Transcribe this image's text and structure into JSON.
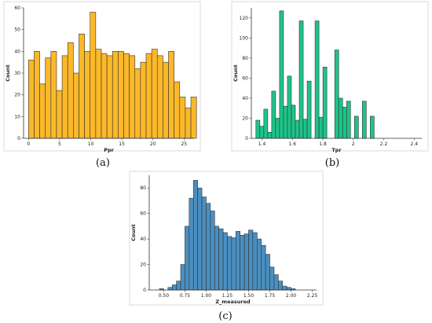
{
  "figure": {
    "captions": [
      "(a)",
      "(b)",
      "(c)"
    ]
  },
  "chart_data": [
    {
      "type": "bar",
      "panel": "a",
      "color": "#fbb829",
      "xlabel": "Ppr",
      "ylabel": "Count",
      "xlim": [
        -0.8,
        26.6
      ],
      "ylim": [
        0,
        60
      ],
      "xticks": [
        0,
        5,
        10,
        15,
        20,
        25
      ],
      "yticks": [
        0,
        10,
        20,
        30,
        40,
        50,
        60
      ],
      "bin_start": 0,
      "bin_width": 0.9,
      "values": [
        36,
        40,
        25,
        37,
        40,
        22,
        38,
        44,
        30,
        48,
        40,
        58,
        41,
        39,
        38,
        40,
        40,
        39,
        38,
        32,
        35,
        39,
        41,
        38,
        35,
        40,
        26,
        19,
        14,
        19
      ]
    },
    {
      "type": "bar",
      "panel": "b",
      "color": "#1dc489",
      "xlabel": "Tpr",
      "ylabel": "Count",
      "xlim": [
        1.33,
        2.45
      ],
      "ylim": [
        0,
        130
      ],
      "xticks": [
        1.4,
        1.6,
        1.8,
        2.0,
        2.2,
        2.4
      ],
      "ytick_labels": [
        "0",
        "20",
        "40",
        "60",
        "80",
        "100",
        "120"
      ],
      "yticks": [
        0,
        20,
        40,
        60,
        80,
        100,
        120
      ],
      "bin_start": 1.36,
      "bin_width": 0.0259,
      "values": [
        18,
        12,
        29,
        6,
        47,
        20,
        127,
        32,
        62,
        33,
        18,
        117,
        19,
        57,
        0,
        117,
        21,
        71,
        0,
        0,
        88,
        40,
        31,
        37,
        0,
        22,
        0,
        37,
        0,
        22
      ]
    },
    {
      "type": "bar",
      "panel": "c",
      "color": "#4a8fc1",
      "xlabel": "Z_measured",
      "ylabel": "Count",
      "xlim": [
        0.33,
        2.3
      ],
      "ylim": [
        0,
        90
      ],
      "xticks": [
        0.5,
        0.75,
        1.0,
        1.25,
        1.5,
        1.75,
        2.0,
        2.25
      ],
      "xtick_labels": [
        "0.50",
        "0.75",
        "1.00",
        "1.25",
        "1.50",
        "1.75",
        "2.00",
        "2.25"
      ],
      "yticks": [
        0,
        20,
        40,
        60,
        80
      ],
      "bin_start": 0.45,
      "bin_width": 0.05,
      "values": [
        1,
        0,
        2,
        4,
        7,
        20,
        50,
        72,
        86,
        80,
        73,
        68,
        62,
        50,
        48,
        45,
        42,
        41,
        46,
        43,
        44,
        47,
        45,
        40,
        35,
        28,
        18,
        12,
        7,
        3,
        2,
        1
      ]
    }
  ]
}
